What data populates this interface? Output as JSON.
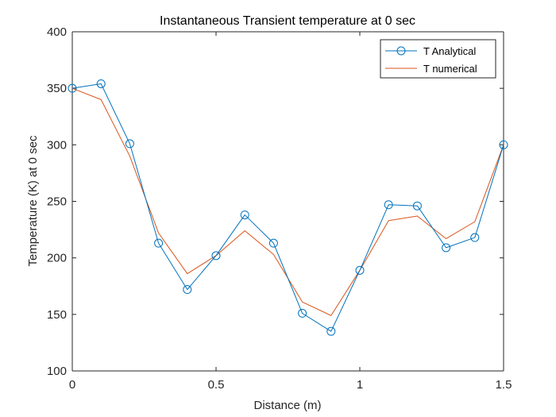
{
  "chart_data": {
    "type": "line",
    "title": "Instantaneous Transient temperature at 0 sec",
    "xlabel": "Distance (m)",
    "ylabel": "Temperature (K) at 0 sec",
    "xlim": [
      0,
      1.5
    ],
    "ylim": [
      100,
      400
    ],
    "xticks": [
      0,
      0.5,
      1,
      1.5
    ],
    "xtick_labels": [
      "0",
      "0.5",
      "1",
      "1.5"
    ],
    "yticks": [
      100,
      150,
      200,
      250,
      300,
      350,
      400
    ],
    "ytick_labels": [
      "100",
      "150",
      "200",
      "250",
      "300",
      "350",
      "400"
    ],
    "grid": false,
    "legend_position": "top-right",
    "x": [
      0,
      0.1,
      0.2,
      0.3,
      0.4,
      0.5,
      0.6,
      0.7,
      0.8,
      0.9,
      1.0,
      1.1,
      1.2,
      1.3,
      1.4,
      1.5
    ],
    "series": [
      {
        "name": "T Analytical",
        "color": "#0072BD",
        "marker": "circle",
        "values": [
          350,
          354,
          301,
          213,
          172,
          202,
          238,
          213,
          151,
          135,
          189,
          247,
          246,
          209,
          218,
          300
        ]
      },
      {
        "name": "T numerical",
        "color": "#D95319",
        "marker": "none",
        "values": [
          350,
          340,
          290,
          222,
          186,
          202,
          224,
          203,
          161,
          149,
          189,
          233,
          237,
          217,
          232,
          300
        ]
      }
    ]
  }
}
